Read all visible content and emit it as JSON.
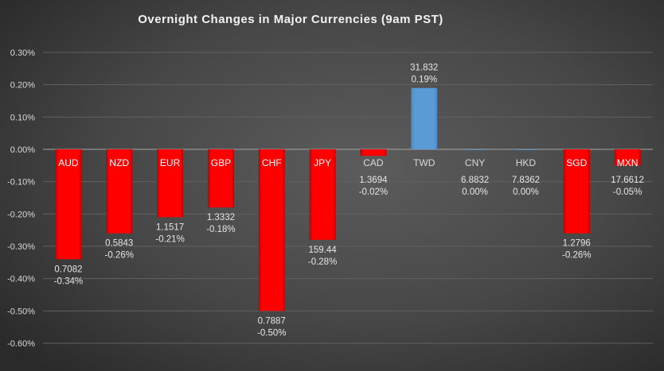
{
  "chart_data": {
    "type": "bar",
    "title": "Overnight Changes in Major Currencies (9am PST)",
    "categories": [
      "AUD",
      "NZD",
      "EUR",
      "GBP",
      "CHF",
      "JPY",
      "CAD",
      "TWD",
      "CNY",
      "HKD",
      "SGD",
      "MXN"
    ],
    "values": [
      -0.34,
      -0.26,
      -0.21,
      -0.18,
      -0.5,
      -0.28,
      -0.02,
      0.19,
      0.0,
      0.0,
      -0.26,
      -0.05
    ],
    "rates": [
      "0.7082",
      "0.5843",
      "1.1517",
      "1.3332",
      "0.7887",
      "159.44",
      "1.3694",
      "31.832",
      "6.8832",
      "7.8362",
      "1.2796",
      "17.6612"
    ],
    "pct_labels": [
      "-0.34%",
      "-0.26%",
      "-0.21%",
      "-0.18%",
      "-0.50%",
      "-0.28%",
      "-0.02%",
      "0.19%",
      "0.00%",
      "0.00%",
      "-0.26%",
      "-0.05%"
    ],
    "y_ticks": [
      "0.30%",
      "0.20%",
      "0.10%",
      "0.00%",
      "-0.10%",
      "-0.20%",
      "-0.30%",
      "-0.40%",
      "-0.50%",
      "-0.60%"
    ],
    "ylim": [
      -0.6,
      0.3
    ],
    "unit": "%",
    "grid": true,
    "colors": {
      "negative": "#ff0000",
      "positive": "#5b9bd5",
      "background": "#474747",
      "text": "#d9d9d9"
    }
  }
}
